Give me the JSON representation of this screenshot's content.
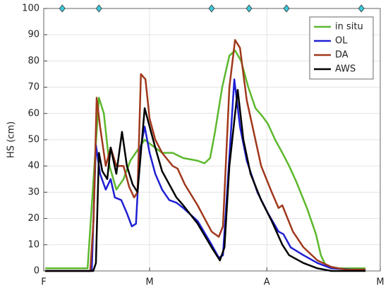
{
  "chart_data": {
    "type": "line",
    "ylabel": "HS (cm)",
    "xlim": [
      0,
      89
    ],
    "xticks": [
      {
        "value": 0,
        "label": "F"
      },
      {
        "value": 28,
        "label": "M"
      },
      {
        "value": 59,
        "label": "A"
      },
      {
        "value": 89,
        "label": "M"
      }
    ],
    "ylim": [
      0,
      100
    ],
    "yticks": [
      0,
      10,
      20,
      30,
      40,
      50,
      60,
      70,
      80,
      90,
      100
    ],
    "grid": true,
    "legend": "upper right",
    "markers": {
      "color": "#3cc8d8",
      "x": [
        4.9,
        14.6,
        44.4,
        54.3,
        64.2,
        84
      ],
      "values": [
        100,
        100,
        100,
        100,
        100,
        100
      ]
    },
    "series": [
      {
        "name": "in situ",
        "color": "#5cb82c",
        "x": [
          0.4,
          11.6,
          14.6,
          15.9,
          17.4,
          19.2,
          21.1,
          22.9,
          24.8,
          26.7,
          28.5,
          31.3,
          34.1,
          36.9,
          40.7,
          42.5,
          44,
          45.3,
          47.2,
          49.1,
          50.6,
          52.2,
          54.1,
          56,
          57.8,
          59.3,
          61.2,
          63.1,
          64.9,
          66.8,
          69.6,
          72,
          73.3,
          74.6,
          78,
          85.1
        ],
        "values": [
          1,
          1,
          66,
          60,
          40,
          31,
          35,
          42,
          46,
          50,
          48,
          45,
          45,
          43,
          42,
          41,
          43,
          53,
          70,
          82,
          84,
          80,
          70,
          62,
          59,
          56,
          50,
          45,
          40,
          34,
          24,
          14,
          6,
          2,
          1,
          1
        ]
      },
      {
        "name": "OL",
        "color": "#1f1fd4",
        "x": [
          0.4,
          12.7,
          13.8,
          14.9,
          16.4,
          17.7,
          18.8,
          20.5,
          22,
          23.3,
          24.4,
          25.4,
          26.7,
          28,
          29.5,
          31.3,
          33.2,
          35.1,
          36.9,
          40.7,
          44.4,
          46.3,
          47.4,
          48.5,
          50.4,
          51.9,
          53.7,
          56.5,
          59.3,
          62.1,
          63.4,
          65.3,
          68.7,
          72.4,
          76.1,
          81.7,
          85.1
        ],
        "values": [
          0,
          0,
          48,
          37,
          31,
          35,
          28,
          27,
          22,
          17,
          18,
          45,
          55,
          45,
          37,
          31,
          27,
          26,
          24,
          19,
          10,
          5,
          6,
          30,
          73,
          55,
          42,
          30,
          22,
          15,
          14,
          9,
          6,
          3,
          1,
          0.5,
          0.5
        ]
      },
      {
        "name": "DA",
        "color": "#a0381c",
        "x": [
          0.4,
          12.3,
          13.2,
          14,
          14.9,
          16.4,
          17.7,
          19.2,
          21.1,
          22.6,
          23.9,
          24.8,
          25.7,
          26.9,
          28,
          29.5,
          31.3,
          34.1,
          35.4,
          37.3,
          40.7,
          44.4,
          46.3,
          47.4,
          49.1,
          50.6,
          51.9,
          53.7,
          57.5,
          60.3,
          62.1,
          63.1,
          65.9,
          68.7,
          72.4,
          76.1,
          79.9,
          85.1
        ],
        "values": [
          0,
          0,
          20,
          66,
          55,
          40,
          47,
          40,
          40,
          32,
          28,
          30,
          75,
          73,
          58,
          50,
          45,
          40,
          39,
          33,
          25,
          15,
          13,
          17,
          70,
          88,
          85,
          65,
          40,
          30,
          24,
          25,
          15,
          9,
          4,
          1.5,
          0.5,
          0.5
        ]
      },
      {
        "name": "AWS",
        "color": "#000000",
        "x": [
          0.4,
          13.1,
          13.8,
          14.6,
          15.5,
          16.8,
          17.7,
          19.2,
          20.7,
          22,
          23.5,
          24.8,
          26.7,
          28,
          29.5,
          31.3,
          33.2,
          35.1,
          36.9,
          40.7,
          44.4,
          46.6,
          47.8,
          49.1,
          51.3,
          52.8,
          54.7,
          57.5,
          60.3,
          63.1,
          64.9,
          68.7,
          72.4,
          76.1,
          85.1
        ],
        "values": [
          0,
          0,
          3,
          45,
          38,
          35,
          47,
          37,
          53,
          40,
          33,
          30,
          62,
          55,
          47,
          38,
          33,
          28,
          25,
          18,
          9,
          4,
          9,
          40,
          69,
          50,
          37,
          27,
          19,
          10,
          6,
          3,
          1,
          0,
          0
        ]
      }
    ]
  }
}
